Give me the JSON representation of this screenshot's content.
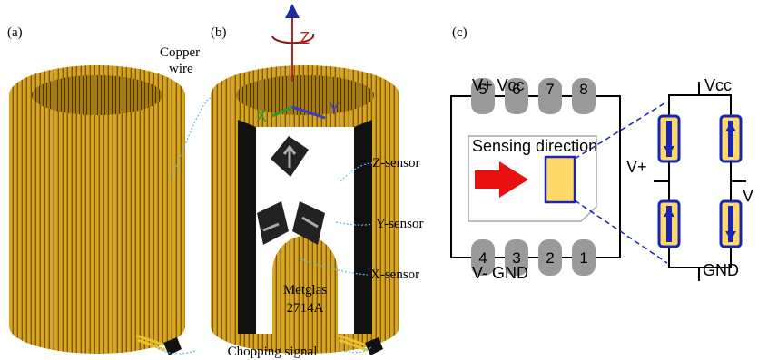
{
  "panels": {
    "a": "(a)",
    "b": "(b)",
    "c": "(c)"
  },
  "labels_b": {
    "axis_z": "Z",
    "axis_x": "X",
    "axis_y": "Y",
    "copper_wire": [
      "Copper",
      "wire"
    ],
    "z_sensor": "Z-sensor",
    "y_sensor": "Y-sensor",
    "x_sensor": "X-sensor",
    "metglas": [
      "Metglas",
      "2714A"
    ],
    "chopping": "Chopping signal"
  },
  "chip": {
    "top_label": "V+ Vcc",
    "bottom_label": "V- GND",
    "sensing": "Sensing direction",
    "top_pins": [
      "5",
      "6",
      "7",
      "8"
    ],
    "bottom_pins": [
      "4",
      "3",
      "2",
      "1"
    ]
  },
  "bridge": {
    "top": "Vcc",
    "left": "V+",
    "right": "V",
    "bottom": "GND"
  }
}
